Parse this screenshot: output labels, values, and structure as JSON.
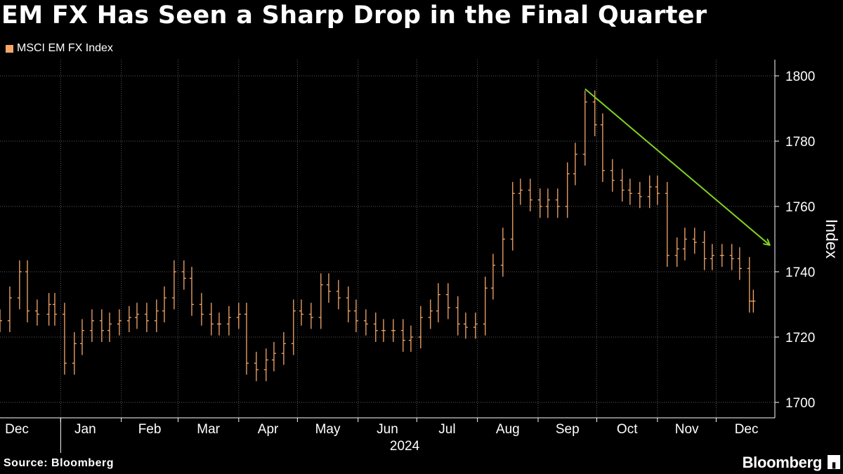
{
  "title": "EM FX Has Seen a Sharp Drop in the Final Quarter",
  "source": "Source: Bloomberg",
  "brand": "Bloomberg",
  "brand_mark_icon": "bloomberg-terminal-icon",
  "colors": {
    "series": "#f5a76a",
    "arrow": "#7ed321",
    "grid": "#5a5a5a",
    "axis": "#ffffff",
    "background": "#000000"
  },
  "chart_data": {
    "type": "line",
    "style": "ohlc-bars",
    "title": "EM FX Has Seen a Sharp Drop in the Final Quarter",
    "xlabel": "2024",
    "ylabel": "Index",
    "ylim": [
      1700,
      1800
    ],
    "yticks": [
      1700,
      1720,
      1740,
      1760,
      1780,
      1800
    ],
    "xticks": [
      "Dec",
      "Jan",
      "Feb",
      "Mar",
      "Apr",
      "May",
      "Jun",
      "Jul",
      "Aug",
      "Sep",
      "Oct",
      "Nov",
      "Dec"
    ],
    "x_range": [
      "2023-12-01",
      "2024-12-31"
    ],
    "grid": true,
    "legend_position": "top-left",
    "annotation": {
      "type": "arrow",
      "from": {
        "x": "2024-09-25",
        "y": 1796
      },
      "to": {
        "x": "2024-12-31",
        "y": 1747
      }
    },
    "series": [
      {
        "name": "MSCI EM FX Index",
        "x": [
          "2023-12-01",
          "2023-12-06",
          "2023-12-11",
          "2023-12-15",
          "2023-12-20",
          "2023-12-26",
          "2023-12-29",
          "2024-01-03",
          "2024-01-08",
          "2024-01-12",
          "2024-01-17",
          "2024-01-22",
          "2024-01-26",
          "2024-01-31",
          "2024-02-05",
          "2024-02-09",
          "2024-02-14",
          "2024-02-19",
          "2024-02-23",
          "2024-02-28",
          "2024-03-04",
          "2024-03-08",
          "2024-03-13",
          "2024-03-18",
          "2024-03-22",
          "2024-03-27",
          "2024-04-01",
          "2024-04-05",
          "2024-04-10",
          "2024-04-15",
          "2024-04-19",
          "2024-04-24",
          "2024-04-29",
          "2024-05-03",
          "2024-05-08",
          "2024-05-13",
          "2024-05-17",
          "2024-05-22",
          "2024-05-27",
          "2024-05-31",
          "2024-06-05",
          "2024-06-10",
          "2024-06-14",
          "2024-06-19",
          "2024-06-24",
          "2024-06-28",
          "2024-07-03",
          "2024-07-08",
          "2024-07-12",
          "2024-07-17",
          "2024-07-22",
          "2024-07-26",
          "2024-07-31",
          "2024-08-05",
          "2024-08-09",
          "2024-08-14",
          "2024-08-19",
          "2024-08-23",
          "2024-08-28",
          "2024-09-02",
          "2024-09-06",
          "2024-09-11",
          "2024-09-16",
          "2024-09-20",
          "2024-09-25",
          "2024-09-30",
          "2024-10-04",
          "2024-10-09",
          "2024-10-14",
          "2024-10-18",
          "2024-10-23",
          "2024-10-28",
          "2024-11-01",
          "2024-11-06",
          "2024-11-11",
          "2024-11-15",
          "2024-11-20",
          "2024-11-25",
          "2024-11-29",
          "2024-12-04",
          "2024-12-09",
          "2024-12-13",
          "2024-12-18",
          "2024-12-20"
        ],
        "values": [
          1725,
          1732,
          1740,
          1728,
          1727,
          1730,
          1727,
          1712,
          1718,
          1722,
          1725,
          1722,
          1724,
          1725,
          1726,
          1727,
          1725,
          1728,
          1732,
          1740,
          1738,
          1730,
          1727,
          1724,
          1724,
          1726,
          1727,
          1712,
          1710,
          1713,
          1715,
          1718,
          1728,
          1727,
          1726,
          1736,
          1734,
          1732,
          1728,
          1725,
          1724,
          1722,
          1722,
          1722,
          1719,
          1720,
          1726,
          1728,
          1733,
          1729,
          1724,
          1723,
          1724,
          1735,
          1742,
          1750,
          1764,
          1765,
          1762,
          1760,
          1762,
          1760,
          1770,
          1776,
          1792,
          1785,
          1771,
          1768,
          1765,
          1764,
          1763,
          1766,
          1764,
          1745,
          1747,
          1750,
          1749,
          1744,
          1745,
          1745,
          1744,
          1741,
          1731,
          1731
        ]
      }
    ]
  }
}
